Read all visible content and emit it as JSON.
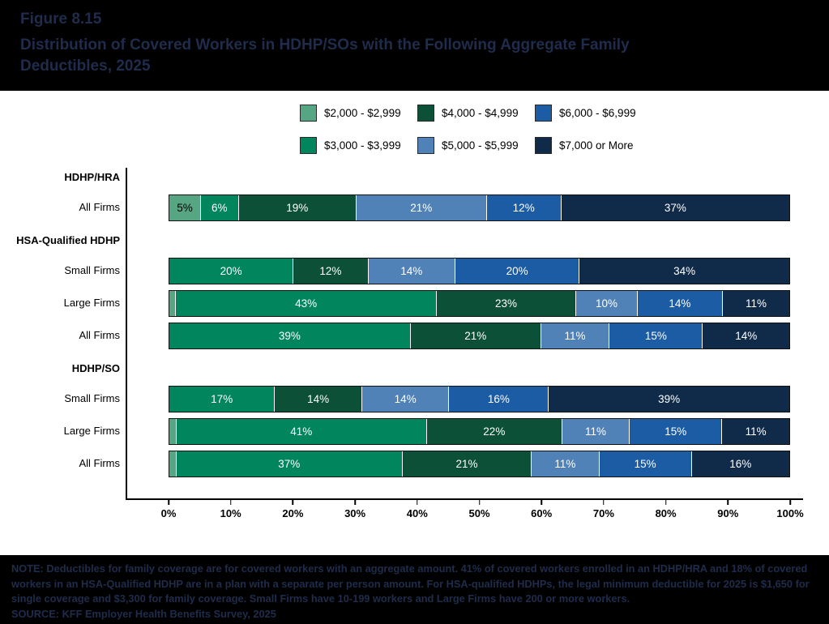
{
  "header": {
    "figure_label": "Figure 8.15",
    "title": "Distribution of Covered Workers in HDHP/SOs with the Following Aggregate Family Deductibles, 2025"
  },
  "chart_data": {
    "type": "bar",
    "variant": "stacked-horizontal",
    "title": "Distribution of Covered Workers in HDHP/SOs with the Following Aggregate Family Deductibles, 2025",
    "legend_position": "top",
    "grid": false,
    "xlim": [
      0,
      100
    ],
    "x_ticks": [
      "0%",
      "10%",
      "20%",
      "30%",
      "40%",
      "50%",
      "60%",
      "70%",
      "80%",
      "90%",
      "100%"
    ],
    "label_min_value": 4,
    "series": [
      {
        "name": "$2,000 - $2,999",
        "color": "#57A683"
      },
      {
        "name": "$3,000 - $3,999",
        "color": "#00855C"
      },
      {
        "name": "$4,000 - $4,999",
        "color": "#0C5137"
      },
      {
        "name": "$5,000 - $5,999",
        "color": "#5182B7"
      },
      {
        "name": "$6,000 - $6,999",
        "color": "#1C5CA5"
      },
      {
        "name": "$7,000 or More",
        "color": "#102A49"
      }
    ],
    "groups": [
      {
        "header": "HDHP/HRA",
        "rows": [
          {
            "label": "All Firms",
            "values": [
              5,
              6,
              19,
              21,
              12,
              37
            ]
          }
        ]
      },
      {
        "header": "HSA-Qualified HDHP",
        "rows": [
          {
            "label": "Small Firms",
            "values": [
              0,
              20,
              12,
              14,
              20,
              34
            ]
          },
          {
            "label": "Large Firms",
            "values": [
              1,
              43,
              23,
              10,
              14,
              11
            ]
          },
          {
            "label": "All Firms",
            "values": [
              0,
              39,
              21,
              11,
              15,
              14
            ]
          }
        ]
      },
      {
        "header": "HDHP/SO",
        "rows": [
          {
            "label": "Small Firms",
            "values": [
              0,
              17,
              14,
              14,
              16,
              39
            ]
          },
          {
            "label": "Large Firms",
            "values": [
              1,
              41,
              22,
              11,
              15,
              11
            ]
          },
          {
            "label": "All Firms",
            "values": [
              1,
              37,
              21,
              11,
              15,
              16
            ]
          }
        ]
      }
    ]
  },
  "footer": {
    "note": "NOTE: Deductibles for family coverage are for covered workers with an aggregate amount. 41% of covered workers enrolled in an HDHP/HRA and 18% of covered workers in an HSA-Qualified HDHP are in a plan with a separate per person amount. For HSA-qualified HDHPs, the legal minimum deductible for 2025 is $1,650 for single coverage and $3,300 for family coverage. Small Firms have 10-199 workers and Large Firms have 200 or more workers.",
    "source": "SOURCE: KFF Employer Health Benefits Survey, 2025"
  }
}
